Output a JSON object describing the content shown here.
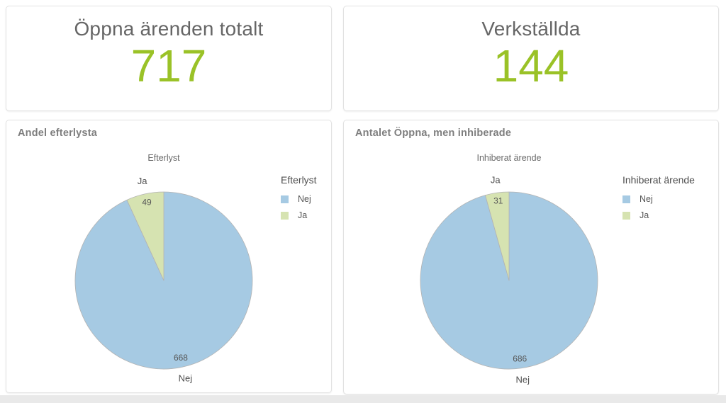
{
  "colors": {
    "accent_green": "#9ac227",
    "pie_blue": "#a6cae3",
    "pie_green": "#d6e3b1",
    "card_border": "#e2e2e2",
    "kpi_title_gray": "#666666",
    "chart_title_gray": "#7e7e7e",
    "label_gray": "#575757",
    "footer_strip": "#e9e9e9"
  },
  "kpi_cards": [
    {
      "title": "Öppna ärenden totalt",
      "value": "717"
    },
    {
      "title": "Verkställda",
      "value": "144"
    }
  ],
  "chart_data": [
    {
      "type": "pie",
      "title": "Andel efterlysta",
      "pie_title": "Efterlyst",
      "legend_title": "Efterlyst",
      "legend_position": "right",
      "categories": [
        "Nej",
        "Ja"
      ],
      "values": [
        668,
        49
      ],
      "colors": [
        "#a6cae3",
        "#d6e3b1"
      ],
      "total": 717,
      "data_labels": "values shown on slices, category names outside"
    },
    {
      "type": "pie",
      "title": "Antalet Öppna, men inhiberade",
      "pie_title": "Inhiberat ärende",
      "legend_title": "Inhiberat ärende",
      "legend_position": "right",
      "categories": [
        "Nej",
        "Ja"
      ],
      "values": [
        686,
        31
      ],
      "colors": [
        "#a6cae3",
        "#d6e3b1"
      ],
      "total": 717,
      "data_labels": "values shown on slices, category names outside"
    }
  ]
}
